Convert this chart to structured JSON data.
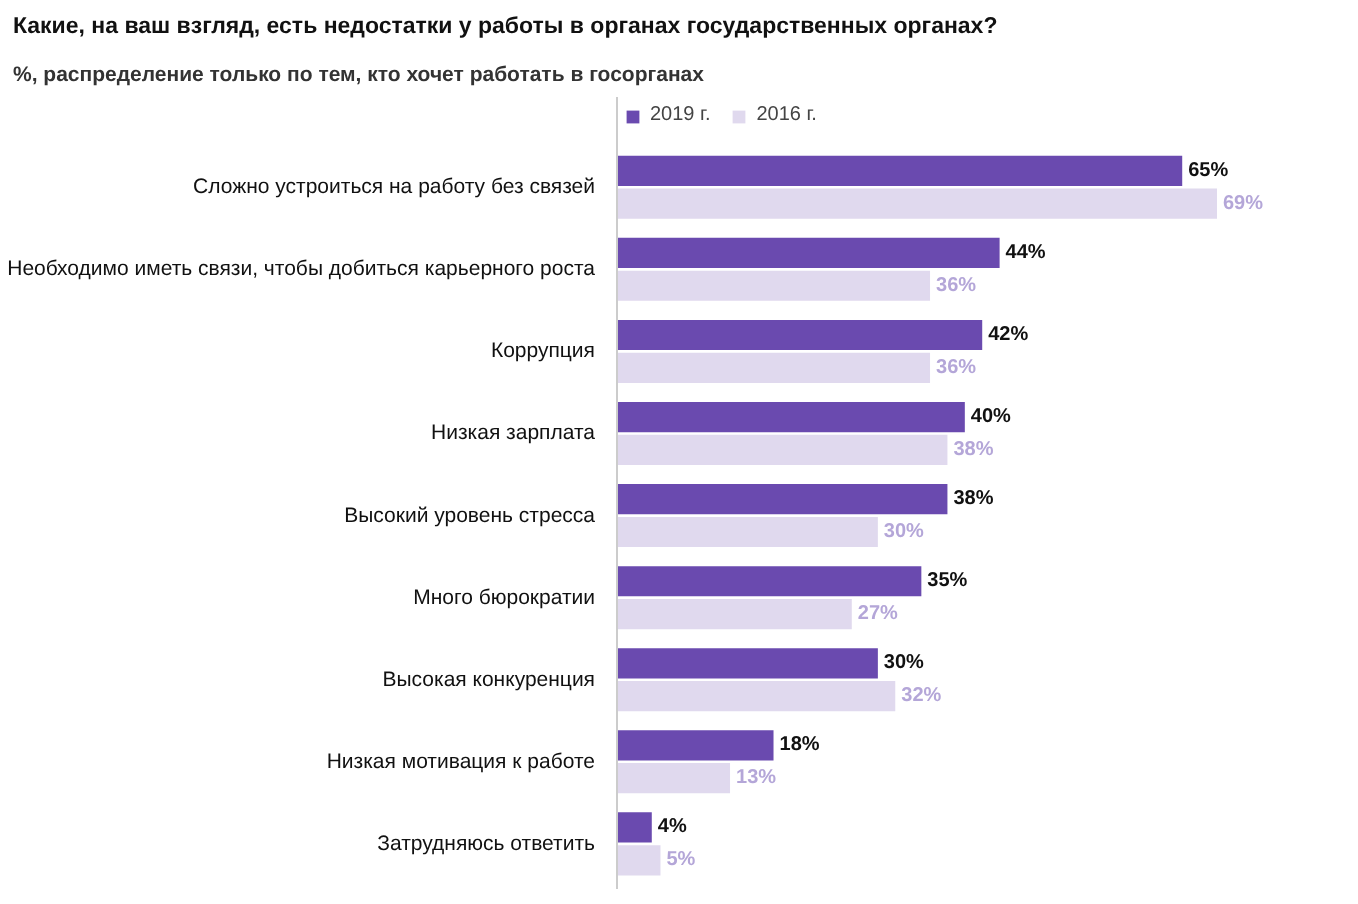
{
  "chart_data": {
    "type": "bar",
    "orientation": "horizontal",
    "title": "Какие, на ваш взгляд, есть недостатки у работы в органах государственных органах?",
    "subtitle": "%, распределение только по тем, кто хочет работать в госорганах",
    "categories": [
      "Сложно устроиться на работу без связей",
      "Необходимо иметь связи, чтобы добиться карьерного роста",
      "Коррупция",
      "Низкая зарплата",
      "Высокий уровень стресса",
      "Много бюрократии",
      "Высокая конкуренция",
      "Низкая мотивация к работе",
      "Затрудняюсь ответить"
    ],
    "series": [
      {
        "name": "2019 г.",
        "color": "#6a4aaf",
        "values": [
          65,
          44,
          42,
          40,
          38,
          35,
          30,
          18,
          4
        ],
        "value_labels": [
          "65%",
          "44%",
          "42%",
          "40%",
          "38%",
          "35%",
          "30%",
          "18%",
          "4%"
        ]
      },
      {
        "name": "2016 г.",
        "color": "#e0d9ee",
        "values": [
          69,
          36,
          36,
          38,
          30,
          27,
          32,
          13,
          5
        ],
        "value_labels": [
          "69%",
          "36%",
          "36%",
          "38%",
          "30%",
          "27%",
          "32%",
          "13%",
          "5%"
        ]
      }
    ],
    "legend": "top"
  }
}
